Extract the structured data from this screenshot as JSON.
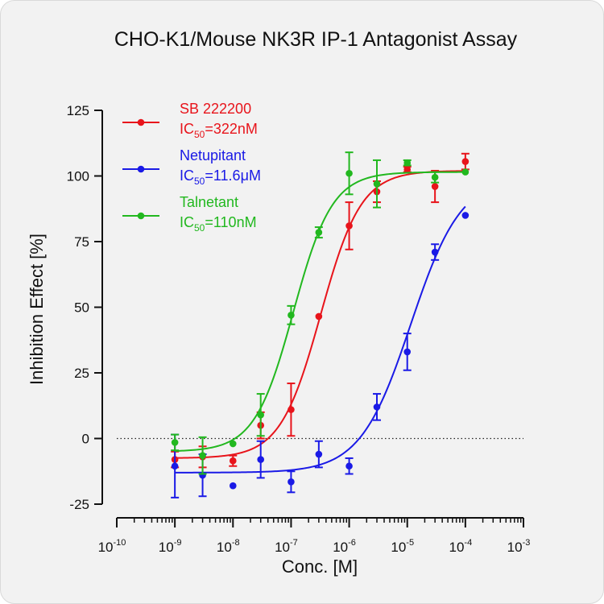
{
  "chart_data": {
    "type": "scatter",
    "title": "CHO-K1/Mouse NK3R IP-1 Antagonist Assay",
    "xlabel": "Conc. [M]",
    "ylabel": "Inhibition Effect [%]",
    "xscale": "log",
    "xlim": [
      1e-10,
      0.001
    ],
    "ylim": [
      -25,
      125
    ],
    "x_ticks": [
      {
        "base": "10",
        "exp": "-10",
        "value": 1e-10
      },
      {
        "base": "10",
        "exp": "-9",
        "value": 1e-09
      },
      {
        "base": "10",
        "exp": "-8",
        "value": 1e-08
      },
      {
        "base": "10",
        "exp": "-7",
        "value": 1e-07
      },
      {
        "base": "10",
        "exp": "-6",
        "value": 1e-06
      },
      {
        "base": "10",
        "exp": "-5",
        "value": 1e-05
      },
      {
        "base": "10",
        "exp": "-4",
        "value": 0.0001
      },
      {
        "base": "10",
        "exp": "-3",
        "value": 0.001
      }
    ],
    "y_ticks": [
      {
        "label": "-25",
        "value": -25
      },
      {
        "label": "0",
        "value": 0
      },
      {
        "label": "25",
        "value": 25
      },
      {
        "label": "50",
        "value": 50
      },
      {
        "label": "75",
        "value": 75
      },
      {
        "label": "100",
        "value": 100
      },
      {
        "label": "125",
        "value": 125
      }
    ],
    "reference_line": {
      "y": 0,
      "style": "dotted"
    },
    "legend_position": "top-left",
    "series": [
      {
        "name": "SB 222200",
        "ic50_prefix": "IC",
        "ic50_sub": "50",
        "ic50_value": "=322nM",
        "color": "#e8141b",
        "fit": {
          "bottom": -7.5,
          "top": 102,
          "log_ic50": -6.49,
          "hill": 1.25
        },
        "points": [
          {
            "x": 1e-09,
            "y": -8,
            "err": 3
          },
          {
            "x": 3e-09,
            "y": -7,
            "err": 4
          },
          {
            "x": 1e-08,
            "y": -8.5,
            "err": 2
          },
          {
            "x": 3e-08,
            "y": 5,
            "err": 5
          },
          {
            "x": 1e-07,
            "y": 11,
            "err": 10
          },
          {
            "x": 3e-07,
            "y": 46.5,
            "err": 0
          },
          {
            "x": 1e-06,
            "y": 81,
            "err": 9
          },
          {
            "x": 3e-06,
            "y": 94,
            "err": 4
          },
          {
            "x": 1e-05,
            "y": 102.5,
            "err": 1
          },
          {
            "x": 3e-05,
            "y": 96,
            "err": 6
          },
          {
            "x": 0.0001,
            "y": 105.5,
            "err": 3
          }
        ]
      },
      {
        "name": "Netupitant",
        "ic50_prefix": "IC",
        "ic50_sub": "50",
        "ic50_value": "=11.6μM",
        "color": "#1a1ae6",
        "fit": {
          "bottom": -13,
          "top": 100,
          "log_ic50": -4.94,
          "hill": 1.0
        },
        "points": [
          {
            "x": 1e-09,
            "y": -10.5,
            "err": 12
          },
          {
            "x": 3e-09,
            "y": -14,
            "err": 8
          },
          {
            "x": 1e-08,
            "y": -18,
            "err": 0
          },
          {
            "x": 3e-08,
            "y": -8,
            "err": 7
          },
          {
            "x": 1e-07,
            "y": -16.5,
            "err": 4
          },
          {
            "x": 3e-07,
            "y": -6,
            "err": 5
          },
          {
            "x": 1e-06,
            "y": -10.5,
            "err": 3
          },
          {
            "x": 3e-06,
            "y": 12,
            "err": 5
          },
          {
            "x": 1e-05,
            "y": 33,
            "err": 7
          },
          {
            "x": 3e-05,
            "y": 71,
            "err": 3
          },
          {
            "x": 0.0001,
            "y": 85,
            "err": 0
          }
        ]
      },
      {
        "name": "Talnetant",
        "ic50_prefix": "IC",
        "ic50_sub": "50",
        "ic50_value": "=110nM",
        "color": "#22b81f",
        "fit": {
          "bottom": -5,
          "top": 101.5,
          "log_ic50": -6.96,
          "hill": 1.3
        },
        "points": [
          {
            "x": 1e-09,
            "y": -1.5,
            "err": 3
          },
          {
            "x": 3e-09,
            "y": -6.5,
            "err": 7
          },
          {
            "x": 1e-08,
            "y": -2,
            "err": 0
          },
          {
            "x": 3e-08,
            "y": 9,
            "err": 8
          },
          {
            "x": 1e-07,
            "y": 47,
            "err": 3.5
          },
          {
            "x": 3e-07,
            "y": 78.5,
            "err": 2
          },
          {
            "x": 1e-06,
            "y": 101,
            "err": 8
          },
          {
            "x": 3e-06,
            "y": 97,
            "err": 9
          },
          {
            "x": 1e-05,
            "y": 105,
            "err": 1
          },
          {
            "x": 3e-05,
            "y": 99.5,
            "err": 2
          },
          {
            "x": 0.0001,
            "y": 101.5,
            "err": 0
          }
        ]
      }
    ]
  }
}
